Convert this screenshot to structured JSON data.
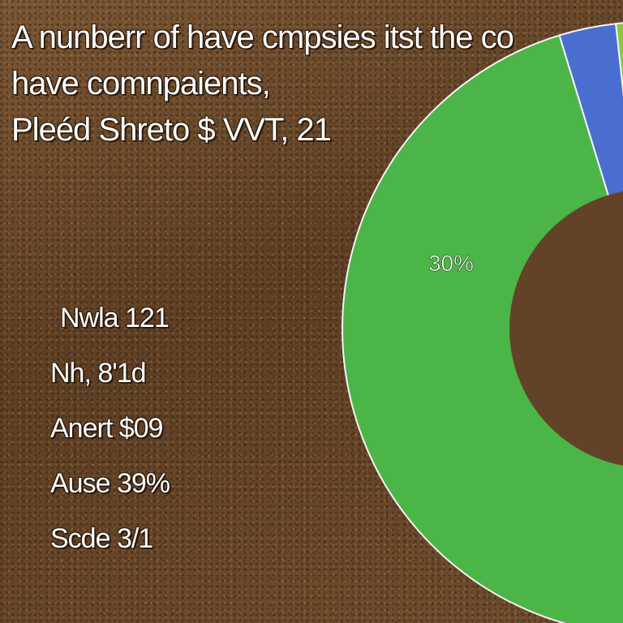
{
  "title_lines": [
    "A nunberr of have cmpsies itst the co",
    "have comnpaients,",
    "Pleéd Shreto $ VVT, 21"
  ],
  "legend": [
    "Nwla 121",
    "Nh, 8'1d",
    "Anert $09",
    "Ause 39%",
    "Scde 3/1"
  ],
  "chart_data": {
    "type": "pie",
    "donut": true,
    "slices": [
      {
        "value": 3,
        "color": "#4a6ed0"
      },
      {
        "value": 4,
        "color": "#8cc63f"
      },
      {
        "value": 93,
        "color": "#4cb548"
      }
    ],
    "data_labels": [
      "30%"
    ]
  }
}
